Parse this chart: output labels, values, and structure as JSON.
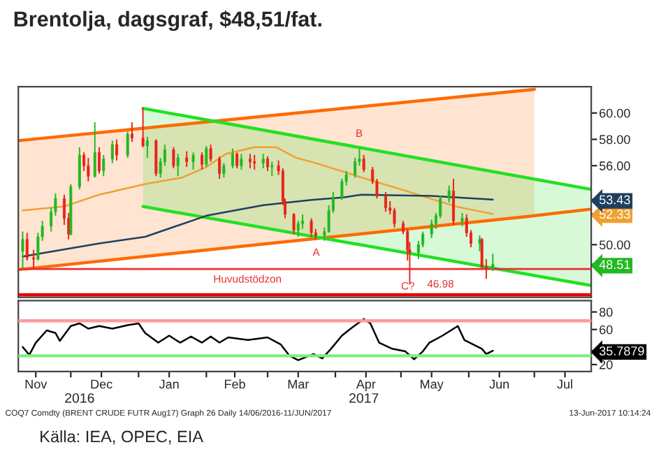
{
  "chart_data": [
    {
      "type": "candlestick",
      "title": "Brentolja, dagsgraf, $48,51/fat.",
      "x": [
        "2016-11-09",
        "2016-11-11",
        "2016-11-14",
        "2016-11-16",
        "2016-11-18",
        "2016-11-22",
        "2016-11-24",
        "2016-11-28",
        "2016-11-30",
        "2016-12-01",
        "2016-12-05",
        "2016-12-07",
        "2016-12-09",
        "2016-12-12",
        "2016-12-14",
        "2016-12-16",
        "2016-12-20",
        "2016-12-22",
        "2016-12-27",
        "2016-12-29",
        "2017-01-03",
        "2017-01-05",
        "2017-01-09",
        "2017-01-11",
        "2017-01-13",
        "2017-01-17",
        "2017-01-19",
        "2017-01-23",
        "2017-01-26",
        "2017-01-30",
        "2017-02-01",
        "2017-02-03",
        "2017-02-07",
        "2017-02-09",
        "2017-02-13",
        "2017-02-15",
        "2017-02-17",
        "2017-02-21",
        "2017-02-23",
        "2017-02-27",
        "2017-03-01",
        "2017-03-03",
        "2017-03-06",
        "2017-03-08",
        "2017-03-09",
        "2017-03-13",
        "2017-03-15",
        "2017-03-17",
        "2017-03-21",
        "2017-03-23",
        "2017-03-27",
        "2017-03-29",
        "2017-03-31",
        "2017-04-04",
        "2017-04-06",
        "2017-04-10",
        "2017-04-12",
        "2017-04-14",
        "2017-04-18",
        "2017-04-20",
        "2017-04-24",
        "2017-04-26",
        "2017-04-28",
        "2017-05-02",
        "2017-05-04",
        "2017-05-05",
        "2017-05-09",
        "2017-05-11",
        "2017-05-15",
        "2017-05-17",
        "2017-05-19",
        "2017-05-23",
        "2017-05-25",
        "2017-05-29",
        "2017-05-31",
        "2017-06-02",
        "2017-06-06",
        "2017-06-07",
        "2017-06-09",
        "2017-06-12"
      ],
      "ohlc": [
        [
          49.5,
          51.0,
          48.2,
          50.4
        ],
        [
          50.4,
          50.9,
          48.8,
          49.0
        ],
        [
          49.0,
          49.6,
          48.2,
          48.9
        ],
        [
          48.9,
          50.9,
          48.8,
          50.6
        ],
        [
          50.6,
          51.8,
          50.3,
          51.4
        ],
        [
          51.4,
          52.8,
          51.0,
          52.5
        ],
        [
          52.5,
          53.9,
          52.2,
          53.5
        ],
        [
          53.5,
          53.8,
          51.5,
          52.0
        ],
        [
          52.0,
          52.4,
          50.4,
          50.8
        ],
        [
          50.8,
          54.6,
          50.7,
          54.4
        ],
        [
          54.4,
          57.4,
          54.2,
          56.8
        ],
        [
          56.8,
          57.0,
          55.6,
          56.0
        ],
        [
          56.0,
          56.6,
          54.8,
          55.2
        ],
        [
          55.2,
          59.3,
          55.1,
          57.0
        ],
        [
          57.0,
          57.4,
          55.4,
          55.6
        ],
        [
          55.6,
          56.8,
          55.2,
          56.5
        ],
        [
          56.5,
          57.9,
          56.2,
          57.6
        ],
        [
          57.6,
          58.0,
          56.4,
          56.8
        ],
        [
          56.8,
          58.6,
          56.6,
          58.4
        ],
        [
          58.4,
          59.3,
          57.8,
          58.1
        ],
        [
          58.1,
          60.4,
          57.4,
          57.5
        ],
        [
          57.5,
          58.2,
          56.6,
          57.9
        ],
        [
          57.9,
          58.0,
          55.2,
          55.4
        ],
        [
          55.4,
          56.6,
          55.1,
          56.3
        ],
        [
          56.3,
          57.6,
          56.0,
          57.2
        ],
        [
          57.2,
          57.4,
          55.8,
          56.0
        ],
        [
          56.0,
          56.9,
          55.2,
          56.6
        ],
        [
          56.6,
          57.1,
          55.9,
          56.3
        ],
        [
          56.3,
          57.0,
          55.7,
          56.8
        ],
        [
          56.8,
          57.0,
          55.7,
          56.1
        ],
        [
          56.1,
          57.5,
          55.9,
          57.3
        ],
        [
          57.3,
          57.6,
          56.3,
          56.5
        ],
        [
          56.5,
          56.7,
          55.0,
          55.4
        ],
        [
          55.4,
          56.2,
          55.1,
          56.0
        ],
        [
          56.0,
          57.3,
          55.8,
          56.9
        ],
        [
          56.9,
          57.0,
          55.8,
          56.0
        ],
        [
          56.0,
          56.9,
          55.7,
          56.5
        ],
        [
          56.5,
          56.9,
          55.8,
          56.3
        ],
        [
          56.3,
          56.8,
          55.7,
          56.2
        ],
        [
          56.2,
          56.9,
          55.8,
          56.5
        ],
        [
          56.5,
          56.7,
          55.6,
          55.9
        ],
        [
          55.9,
          56.3,
          55.2,
          56.0
        ],
        [
          56.0,
          56.4,
          55.3,
          55.6
        ],
        [
          55.6,
          55.8,
          53.0,
          53.3
        ],
        [
          53.3,
          53.5,
          52.0,
          52.3
        ],
        [
          52.3,
          52.4,
          50.8,
          51.1
        ],
        [
          51.1,
          51.8,
          50.6,
          51.6
        ],
        [
          51.6,
          52.3,
          51.2,
          51.8
        ],
        [
          51.8,
          52.0,
          50.6,
          50.9
        ],
        [
          50.9,
          51.2,
          50.4,
          50.7
        ],
        [
          50.7,
          51.3,
          50.3,
          51.0
        ],
        [
          51.0,
          53.0,
          50.9,
          52.6
        ],
        [
          52.6,
          54.0,
          52.4,
          53.6
        ],
        [
          53.6,
          55.0,
          53.4,
          54.8
        ],
        [
          54.8,
          55.6,
          54.5,
          55.3
        ],
        [
          55.3,
          56.6,
          55.1,
          56.3
        ],
        [
          56.3,
          57.3,
          56.0,
          56.5
        ],
        [
          56.5,
          56.8,
          55.5,
          55.7
        ],
        [
          55.7,
          55.9,
          54.6,
          54.8
        ],
        [
          54.8,
          55.0,
          53.5,
          53.7
        ],
        [
          53.7,
          54.0,
          52.5,
          52.8
        ],
        [
          52.8,
          53.3,
          52.3,
          52.6
        ],
        [
          52.6,
          52.8,
          51.3,
          51.6
        ],
        [
          51.6,
          51.8,
          50.8,
          51.0
        ],
        [
          51.0,
          51.2,
          48.8,
          49.6
        ],
        [
          49.6,
          50.2,
          46.98,
          49.4
        ],
        [
          49.4,
          50.3,
          48.9,
          50.0
        ],
        [
          50.0,
          51.0,
          49.8,
          50.8
        ],
        [
          50.8,
          51.9,
          50.5,
          51.6
        ],
        [
          51.6,
          52.4,
          51.2,
          52.2
        ],
        [
          52.2,
          53.7,
          52.0,
          53.5
        ],
        [
          53.5,
          54.5,
          53.2,
          54.1
        ],
        [
          54.1,
          55.0,
          51.5,
          51.8
        ],
        [
          51.8,
          52.4,
          51.4,
          52.0
        ],
        [
          52.0,
          52.3,
          50.6,
          50.9
        ],
        [
          50.9,
          51.1,
          49.8,
          50.1
        ],
        [
          50.1,
          50.7,
          49.5,
          50.4
        ],
        [
          50.4,
          50.5,
          48.2,
          48.3
        ],
        [
          48.3,
          48.9,
          47.4,
          48.2
        ],
        [
          48.2,
          49.3,
          48.0,
          48.51
        ]
      ],
      "colors": [
        "#22b822",
        "#e8231a",
        "#e8231a",
        "#22b822",
        "#22b822",
        "#22b822",
        "#22b822",
        "#e8231a",
        "#e8231a",
        "#22b822",
        "#22b822",
        "#e8231a",
        "#e8231a",
        "#22b822",
        "#e8231a",
        "#22b822",
        "#22b822",
        "#e8231a",
        "#22b822",
        "#e8231a",
        "#e8231a",
        "#22b822",
        "#e8231a",
        "#22b822",
        "#22b822",
        "#e8231a",
        "#22b822",
        "#e8231a",
        "#22b822",
        "#e8231a",
        "#22b822",
        "#e8231a",
        "#e8231a",
        "#22b822",
        "#22b822",
        "#e8231a",
        "#22b822",
        "#e8231a",
        "#e8231a",
        "#22b822",
        "#e8231a",
        "#22b822",
        "#e8231a",
        "#e8231a",
        "#e8231a",
        "#e8231a",
        "#22b822",
        "#22b822",
        "#e8231a",
        "#e8231a",
        "#22b822",
        "#22b822",
        "#22b822",
        "#22b822",
        "#22b822",
        "#22b822",
        "#22b822",
        "#e8231a",
        "#e8231a",
        "#e8231a",
        "#e8231a",
        "#e8231a",
        "#e8231a",
        "#e8231a",
        "#e8231a",
        "#e8231a",
        "#22b822",
        "#22b822",
        "#22b822",
        "#22b822",
        "#22b822",
        "#22b822",
        "#e8231a",
        "#22b822",
        "#e8231a",
        "#e8231a",
        "#22b822",
        "#e8231a",
        "#e8231a",
        "#22b822"
      ],
      "series": [
        {
          "type": "line",
          "color": "#ff6a00",
          "x": [
            "2016-11-07",
            "2017-07-01"
          ],
          "values": [
            57.9,
            61.8
          ],
          "lower": [
            48.1,
            52.2
          ],
          "upper": [
            57.9,
            61.8
          ]
        },
        {
          "type": "line",
          "color": "#ff6a00",
          "x": [
            "2016-11-07",
            "2017-07-01",
            "2017-07-27"
          ],
          "values": [
            48.1,
            52.2,
            52.7
          ]
        },
        {
          "type": "line",
          "color": "#22e022",
          "x": [
            "2017-01-03",
            "2017-07-27"
          ],
          "values": [
            60.35,
            54.2
          ],
          "lower": [
            52.9,
            46.9
          ],
          "upper": [
            60.35,
            54.2
          ]
        },
        {
          "type": "line",
          "color": "#22e022",
          "x": [
            "2017-01-03",
            "2017-07-27"
          ],
          "values": [
            52.9,
            46.9
          ]
        },
        {
          "type": "line",
          "color": "#f0a030",
          "x": [
            "2016-11-09",
            "2016-11-28",
            "2016-12-14",
            "2017-01-04",
            "2017-01-21",
            "2017-02-01",
            "2017-02-10",
            "2017-02-23",
            "2017-03-05",
            "2017-03-14",
            "2017-03-23",
            "2017-04-13",
            "2017-05-05",
            "2017-05-26",
            "2017-06-12"
          ],
          "values": [
            52.6,
            52.9,
            53.8,
            54.6,
            55.1,
            55.9,
            56.9,
            57.4,
            57.4,
            56.6,
            56.2,
            55.1,
            54.0,
            52.9,
            52.33
          ]
        },
        {
          "type": "line",
          "color": "#1f3f5f",
          "x": [
            "2016-11-09",
            "2016-12-14",
            "2017-01-04",
            "2017-02-01",
            "2017-02-27",
            "2017-03-21",
            "2017-04-05",
            "2017-04-13",
            "2017-05-15",
            "2017-06-12"
          ],
          "values": [
            49.1,
            50.1,
            50.6,
            52.2,
            53.0,
            53.4,
            53.6,
            53.8,
            53.7,
            53.43
          ]
        }
      ],
      "ref_lines": [
        {
          "axis": "y",
          "value": 48.15,
          "label": "Huvudstödzon",
          "color": "#e83030"
        },
        {
          "axis": "y",
          "value": 46.2,
          "color": "#e80000"
        }
      ],
      "annotations": [
        "A",
        "B",
        "C?",
        "46.98"
      ],
      "xlim": [
        "2016-11-07",
        "2017-07-27"
      ],
      "ylim": [
        46,
        62
      ],
      "yticks": [
        {
          "value": 48.51,
          "label": "48.51"
        },
        {
          "value": 50,
          "label": "50.00"
        },
        {
          "value": 52.33,
          "label": "52.33"
        },
        {
          "value": 53.43,
          "label": "53.43"
        },
        {
          "value": 56,
          "label": "56.00"
        },
        {
          "value": 58,
          "label": "58.00"
        },
        {
          "value": 60,
          "label": "60.00"
        }
      ],
      "tick_labels": "y"
    },
    {
      "type": "line",
      "series": [
        {
          "color": "#000000",
          "x": [
            "2016-11-09",
            "2016-11-12",
            "2016-11-15",
            "2016-11-20",
            "2016-11-24",
            "2016-11-26",
            "2016-12-01",
            "2016-12-05",
            "2016-12-09",
            "2016-12-14",
            "2016-12-20",
            "2016-12-27",
            "2017-01-01",
            "2017-01-04",
            "2017-01-10",
            "2017-01-15",
            "2017-01-20",
            "2017-01-25",
            "2017-01-30",
            "2017-02-03",
            "2017-02-07",
            "2017-02-11",
            "2017-02-20",
            "2017-03-01",
            "2017-03-07",
            "2017-03-11",
            "2017-03-15",
            "2017-03-22",
            "2017-03-26",
            "2017-03-30",
            "2017-04-04",
            "2017-04-08",
            "2017-04-14",
            "2017-04-17",
            "2017-04-21",
            "2017-04-27",
            "2017-05-03",
            "2017-05-07",
            "2017-05-11",
            "2017-05-14",
            "2017-05-20",
            "2017-05-27",
            "2017-05-30",
            "2017-06-03",
            "2017-06-07",
            "2017-06-09",
            "2017-06-12"
          ],
          "values": [
            40,
            31,
            45,
            59,
            56,
            47,
            64,
            67,
            61,
            64,
            61,
            65,
            67,
            56,
            45,
            53,
            45,
            52,
            45,
            52,
            45,
            51,
            48,
            51,
            43,
            30,
            25,
            32,
            27,
            38,
            53,
            61,
            72,
            67,
            45,
            38,
            35,
            26,
            35,
            45,
            53,
            64,
            48,
            43,
            38,
            32,
            35.7879
          ]
        }
      ],
      "ref_lines": [
        {
          "axis": "y",
          "value": 70,
          "color": "#ff9a9a"
        },
        {
          "axis": "y",
          "value": 30,
          "color": "#7cf07c"
        }
      ],
      "x2lim": [
        "2016-11-07",
        "2017-07-27"
      ],
      "x2ticks": [
        {
          "value": "2016-12-05",
          "label": "2016"
        },
        {
          "value": "2017-04-14",
          "label": "2017"
        }
      ],
      "annotations": [
        "COQ7 Comdty (BRENT CRUDE FUTR Aug17) Graph 26 Daily 14/06/2016-11/JUN/2017",
        "13-Jun-2017 10:14:24",
        "Källa: IEA, OPEC, EIA"
      ],
      "xlim": [
        "2016-11-07",
        "2017-07-27"
      ],
      "ylim": [
        12,
        93
      ],
      "xticks": [
        {
          "value": "2016-11-15",
          "label": "Nov"
        },
        {
          "value": "2016-12-01",
          "label": null
        },
        {
          "value": "2016-12-15",
          "label": "Dec"
        },
        {
          "value": "2017-01-01",
          "label": null
        },
        {
          "value": "2017-01-15",
          "label": "Jan"
        },
        {
          "value": "2017-02-01",
          "label": null
        },
        {
          "value": "2017-02-14",
          "label": "Feb"
        },
        {
          "value": "2017-03-01",
          "label": null
        },
        {
          "value": "2017-03-15",
          "label": "Mar"
        },
        {
          "value": "2017-04-01",
          "label": null
        },
        {
          "value": "2017-04-15",
          "label": "Apr"
        },
        {
          "value": "2017-05-01",
          "label": null
        },
        {
          "value": "2017-05-15",
          "label": "May"
        },
        {
          "value": "2017-06-01",
          "label": null
        },
        {
          "value": "2017-06-15",
          "label": "Jun"
        },
        {
          "value": "2017-07-01",
          "label": null
        },
        {
          "value": "2017-07-15",
          "label": "Jul"
        }
      ],
      "yticks": [
        20,
        {
          "value": 35.7879,
          "label": "35.7879"
        },
        60,
        80
      ]
    }
  ]
}
